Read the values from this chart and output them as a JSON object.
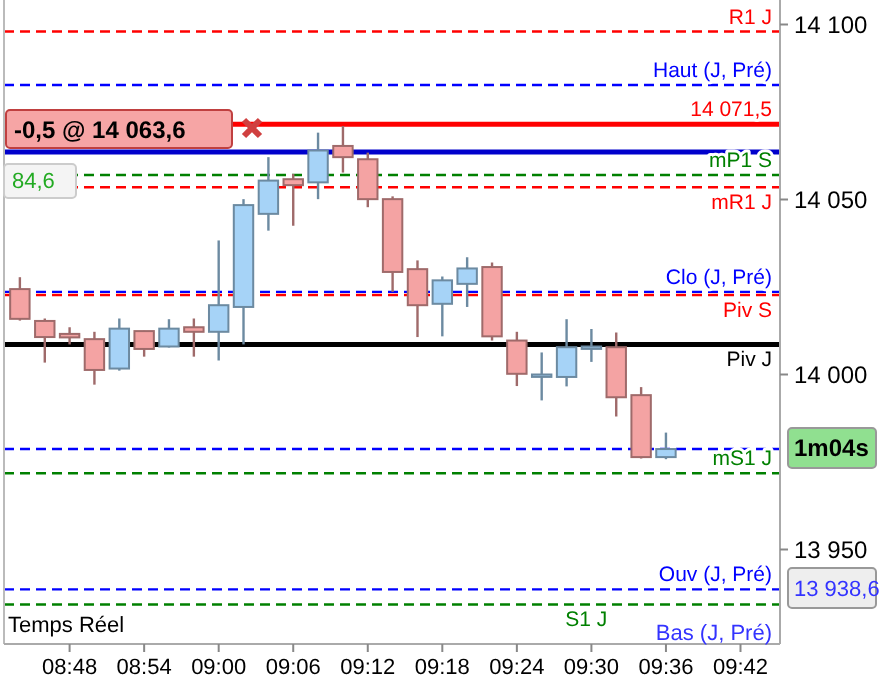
{
  "chart_data": {
    "type": "candlestick",
    "x": [
      8.7333,
      8.7667,
      8.8,
      8.8333,
      8.8667,
      8.9,
      8.9333,
      8.9667,
      9,
      9.0333,
      9.0667,
      9.1,
      9.1333,
      9.1667,
      9.2,
      9.2333,
      9.2667,
      9.3,
      9.3333,
      9.3667,
      9.4,
      9.4333,
      9.4667,
      9.5,
      9.5333,
      9.5667,
      9.6
    ],
    "ohlc": [
      [
        14024.4,
        14027.8,
        14015.4,
        14015.9
      ],
      [
        14015.3,
        14016,
        14003.4,
        14010.7
      ],
      [
        14011.6,
        14013.5,
        14008.6,
        14010.6
      ],
      [
        14010.1,
        14012.2,
        13997.1,
        14001.3
      ],
      [
        14001.7,
        14016,
        14001.1,
        14013.1
      ],
      [
        14012.4,
        14012.5,
        14005.1,
        14007.3
      ],
      [
        14008,
        14015.8,
        14007.7,
        14013.1
      ],
      [
        14013.5,
        14016,
        14005.1,
        14012.2
      ],
      [
        14012.2,
        14038.3,
        14004,
        14019.8
      ],
      [
        14019.3,
        14050.1,
        14008.6,
        14048.4
      ],
      [
        14045.9,
        14062.1,
        14041.1,
        14055.4
      ],
      [
        14055.8,
        14057.3,
        14042.5,
        14054.1
      ],
      [
        14054.9,
        14069.1,
        14050.1,
        14064
      ],
      [
        14065.3,
        14071,
        14057.7,
        14062.1
      ],
      [
        14061.5,
        14063.4,
        14047.8,
        14050.1
      ],
      [
        14050.1,
        14050.9,
        14023.6,
        14029.3
      ],
      [
        14030.1,
        14032.6,
        14010.7,
        14019.8
      ],
      [
        14020.2,
        14028,
        14010.9,
        14026.9
      ],
      [
        14025.9,
        14033.5,
        14019.3,
        14030.3
      ],
      [
        14030.7,
        14032,
        14009.7,
        14010.9
      ],
      [
        14009.7,
        14012.2,
        13996.7,
        14000.2
      ],
      [
        13999.5,
        14006.3,
        13992.6,
        14000
      ],
      [
        13999.3,
        14015.8,
        13996.6,
        14007.8
      ],
      [
        14007.7,
        14013,
        14003.6,
        14008
      ],
      [
        14007.8,
        14012,
        13988,
        13993.5
      ],
      [
        13994.1,
        13996.4,
        13976,
        13976.4
      ],
      [
        13976.4,
        13983.4,
        13975.8,
        13978.7
      ]
    ],
    "colors": [
      "#f4a3a3",
      "#f4a3a3",
      "#f4a3a3",
      "#f4a3a3",
      "#a6d3f7",
      "#f4a3a3",
      "#a6d3f7",
      "#f4a3a3",
      "#a6d3f7",
      "#a6d3f7",
      "#a6d3f7",
      "#f4a3a3",
      "#a6d3f7",
      "#f4a3a3",
      "#f4a3a3",
      "#f4a3a3",
      "#f4a3a3",
      "#a6d3f7",
      "#a6d3f7",
      "#f4a3a3",
      "#f4a3a3",
      "#a6d3f7",
      "#a6d3f7",
      "#a6d3f7",
      "#f4a3a3",
      "#f4a3a3",
      "#a6d3f7"
    ],
    "xlim": [
      8.712,
      9.753
    ],
    "xticks": [
      {
        "value": 8.8,
        "label": "08:48"
      },
      {
        "value": 8.9,
        "label": "08:54"
      },
      {
        "value": 9,
        "label": "09:00"
      },
      {
        "value": 9.1,
        "label": "09:06"
      },
      {
        "value": 9.2,
        "label": "09:12"
      },
      {
        "value": 9.3,
        "label": "09:18"
      },
      {
        "value": 9.4,
        "label": "09:24"
      },
      {
        "value": 9.5,
        "label": "09:30"
      },
      {
        "value": 9.6,
        "label": "09:36"
      },
      {
        "value": 9.7,
        "label": "09:42"
      }
    ],
    "ylim": [
      13923,
      14107
    ],
    "yticks": [
      {
        "value": 13950,
        "label": "13 950"
      },
      {
        "value": 14000,
        "label": "14 000"
      },
      {
        "value": 14050,
        "label": "14 050"
      },
      {
        "value": 14100,
        "label": "14 100"
      }
    ],
    "grid": false,
    "ref_lines": [
      {
        "axis": "y",
        "value": 14098,
        "label": "R1 J",
        "color": "#ff0000",
        "line_style": "dashed"
      },
      {
        "axis": "y",
        "value": 14082.7,
        "label": "Haut (J, Pré)",
        "color": "#0000ff",
        "line_style": "dashed"
      },
      {
        "axis": "y",
        "value": 14071.5,
        "label": "14 071,5",
        "color": "#ff0000",
        "line_style": "solid"
      },
      {
        "axis": "y",
        "value": 14063.6,
        "label": null,
        "color": "#0000cc",
        "line_style": "solid"
      },
      {
        "axis": "y",
        "value": 14057,
        "label": "mP1 S",
        "color": "#008000",
        "line_style": "dashed"
      },
      {
        "axis": "y",
        "value": 14053.5,
        "label": "mR1 J",
        "color": "#ff0000",
        "line_style": "dashed"
      },
      {
        "axis": "y",
        "value": 14023.6,
        "label": "Clo (J, Pré)",
        "color": "#0000ff",
        "line_style": "dashed"
      },
      {
        "axis": "y",
        "value": 14022.7,
        "label": "Piv S",
        "color": "#ff0000",
        "line_style": "dashed"
      },
      {
        "axis": "y",
        "value": 14008.6,
        "label": "Piv J",
        "color": "#000000",
        "line_style": "solid"
      },
      {
        "axis": "y",
        "value": 13978.7,
        "label": null,
        "color": "#0000ff",
        "line_style": "dashed"
      },
      {
        "axis": "y",
        "value": 13971.8,
        "label": "mS1 J",
        "color": "#008000",
        "line_style": "dashed"
      },
      {
        "axis": "y",
        "value": 13938.6,
        "label": "Ouv (J, Pré)",
        "color": "#0000ff",
        "line_style": "dashed"
      },
      {
        "axis": "y",
        "value": 13934.3,
        "label": "S1 J",
        "color": "#008000",
        "line_style": "dashed"
      }
    ],
    "annotations": [
      "-0,5 @ 14 063,6",
      "1m04s",
      "13 938,6",
      "84,6",
      "Bas (J, Pré)",
      "Temps Réel"
    ]
  }
}
